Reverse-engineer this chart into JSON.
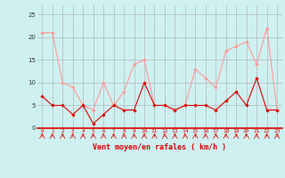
{
  "x": [
    0,
    1,
    2,
    3,
    4,
    5,
    6,
    7,
    8,
    9,
    10,
    11,
    12,
    13,
    14,
    15,
    16,
    17,
    18,
    19,
    20,
    21,
    22,
    23
  ],
  "rafales": [
    21,
    21,
    10,
    9,
    5,
    4,
    10,
    5,
    8,
    14,
    15,
    5,
    5,
    4,
    5,
    13,
    11,
    9,
    17,
    18,
    19,
    14,
    22,
    4
  ],
  "moyen": [
    7,
    5,
    5,
    3,
    5,
    1,
    3,
    5,
    4,
    4,
    10,
    5,
    5,
    4,
    5,
    5,
    5,
    4,
    6,
    8,
    5,
    11,
    4,
    4
  ],
  "bg_color": "#cff0f0",
  "grid_color": "#aaaaaa",
  "line_color_rafales": "#ff9999",
  "line_color_moyen": "#dd0000",
  "marker_color_rafales": "#ff9999",
  "marker_color_moyen": "#dd0000",
  "xlabel": "Vent moyen/en rafales ( km/h )",
  "ylim": [
    0,
    27
  ],
  "yticks": [
    0,
    5,
    10,
    15,
    20,
    25
  ],
  "xticks": [
    0,
    1,
    2,
    3,
    4,
    5,
    6,
    7,
    8,
    9,
    10,
    11,
    12,
    13,
    14,
    15,
    16,
    17,
    18,
    19,
    20,
    21,
    22,
    23
  ]
}
